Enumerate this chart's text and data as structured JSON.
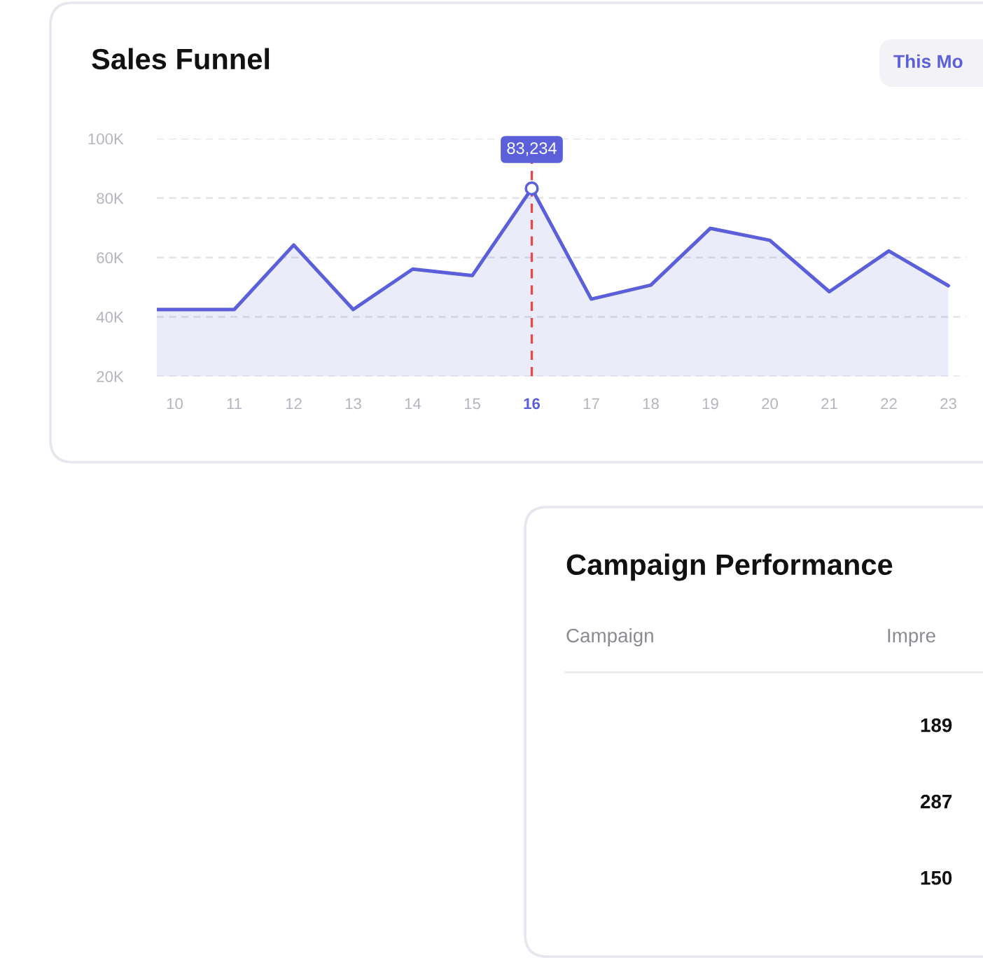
{
  "chart_data": [
    {
      "type": "area",
      "title": "Sales Funnel",
      "color": "#5b5fd9",
      "x": [
        9.7,
        10,
        11,
        12,
        13,
        14,
        15,
        16,
        17,
        18,
        19,
        20,
        21,
        22,
        23
      ],
      "values": [
        42500,
        42500,
        42500,
        64200,
        42500,
        56100,
        53900,
        83234,
        46000,
        50700,
        69800,
        65800,
        48500,
        62200,
        50500
      ],
      "xlim": [
        9.7,
        23.3
      ],
      "xticks": [
        10,
        11,
        12,
        13,
        14,
        15,
        16,
        17,
        18,
        19,
        20,
        21,
        22,
        23
      ],
      "ylim": [
        20000,
        100000
      ],
      "yticks": [
        {
          "value": 20000,
          "label": "20K"
        },
        {
          "value": 40000,
          "label": "40K"
        },
        {
          "value": 60000,
          "label": "60K"
        },
        {
          "value": 80000,
          "label": "80K"
        },
        {
          "value": 100000,
          "label": "100K"
        }
      ],
      "grid": "y",
      "ref_lines": [
        {
          "axis": "x",
          "value": 16,
          "color": "#e5484d",
          "line_style": "dashed"
        }
      ],
      "annotations": [
        {
          "text": "83,234",
          "x": 16,
          "y": 83234
        },
        "This Mo"
      ]
    },
    {
      "type": "other",
      "title": "Campaign Performance",
      "annotations": [
        "Campaign",
        "Impre",
        "189",
        "287",
        "150"
      ]
    }
  ]
}
